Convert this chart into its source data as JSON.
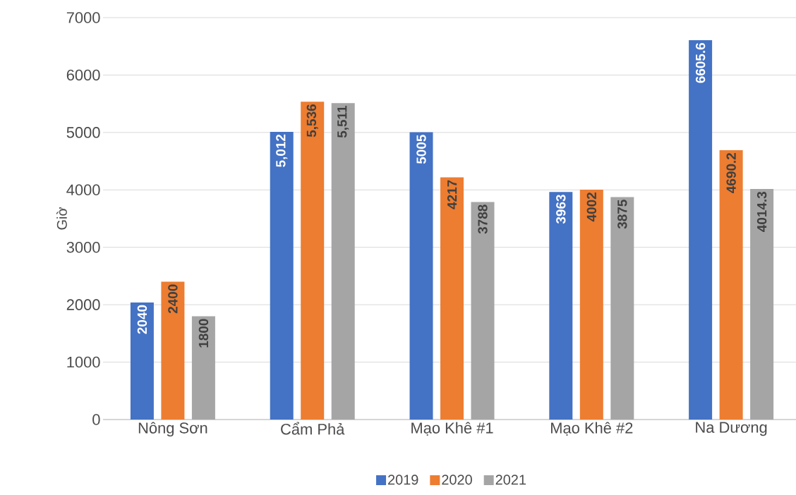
{
  "chart_data": {
    "type": "bar",
    "ylabel": "Giờ",
    "categories": [
      "Nông Sơn",
      "Cẩm Phả",
      "Mạo Khê #1",
      "Mạo Khê #2",
      "Na Dương"
    ],
    "series": [
      {
        "name": "2019",
        "color": "#4472c4",
        "values": [
          2040,
          5012,
          5005,
          3963,
          6605.6
        ],
        "value_labels": [
          "2040",
          "5,012",
          "5005",
          "3963",
          "6605.6"
        ]
      },
      {
        "name": "2020",
        "color": "#ed7d31",
        "values": [
          2400,
          5536,
          4217,
          4002,
          4690.2
        ],
        "value_labels": [
          "2400",
          "5,536",
          "4217",
          "4002",
          "4690.2"
        ]
      },
      {
        "name": "2021",
        "color": "#a5a5a5",
        "values": [
          1800,
          5511,
          3788,
          3875,
          4014.3
        ],
        "value_labels": [
          "1800",
          "5,511",
          "3788",
          "3875",
          "4014.3"
        ]
      }
    ],
    "ylim": [
      0,
      7000
    ],
    "yticks": [
      0,
      1000,
      2000,
      3000,
      4000,
      5000,
      6000,
      7000
    ],
    "grid": "y",
    "legend": "bottom"
  }
}
